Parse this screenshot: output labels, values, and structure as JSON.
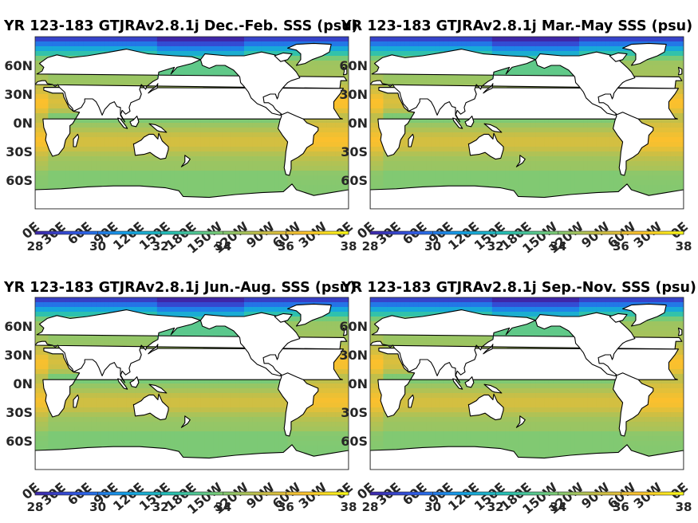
{
  "chart_data": {
    "type": "heatmap",
    "colormap": [
      "#3e26a8",
      "#2f5be6",
      "#139fe8",
      "#24c0b5",
      "#71cb7c",
      "#c3bf49",
      "#fbc02d",
      "#f9fb15"
    ],
    "land_color": "#ffffff",
    "colorbar": {
      "min": 28,
      "max": 38,
      "ticks": [
        "28",
        "30",
        "32",
        "34",
        "36",
        "38"
      ]
    },
    "x_ticks": [
      "0E",
      "30E",
      "60E",
      "90E",
      "120E",
      "150E",
      "180E",
      "150W",
      "120W",
      "90W",
      "60W",
      "30W",
      "0E"
    ],
    "y_ticks": [
      "60N",
      "30N",
      "0N",
      "30S",
      "60S"
    ],
    "panels": [
      {
        "title": "YR 123-183 GTJRAv2.8.1j Dec.-Feb. SSS (psu)"
      },
      {
        "title": "YR 123-183 GTJRAv2.8.1j Mar.-May SSS (psu)"
      },
      {
        "title": "YR 123-183 GTJRAv2.8.1j Jun.-Aug. SSS (psu)"
      },
      {
        "title": "YR 123-183 GTJRAv2.8.1j Sep.-Nov. SSS (psu)"
      }
    ]
  }
}
